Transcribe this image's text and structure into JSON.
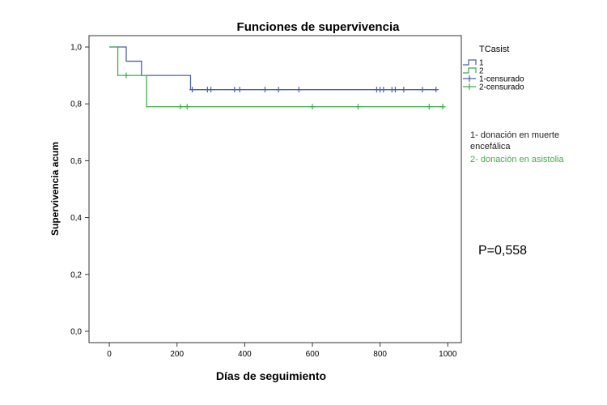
{
  "chart_data": {
    "type": "line",
    "title": "Funciones de supervivencia",
    "xlabel": "Días de seguimiento",
    "ylabel": "Supervivencia acum",
    "xlim": [
      -60,
      1040
    ],
    "ylim": [
      -0.04,
      1.04
    ],
    "x_ticks": [
      0,
      200,
      400,
      600,
      800,
      1000
    ],
    "y_ticks": [
      0.0,
      0.2,
      0.4,
      0.6,
      0.8,
      1.0
    ],
    "x_tick_labels": [
      "0",
      "200",
      "400",
      "600",
      "800",
      "1000"
    ],
    "y_tick_labels": [
      "0,0",
      "0,2",
      "0,4",
      "0,6",
      "0,8",
      "1,0"
    ],
    "legend_title": "TCasist",
    "legend_placement": "right",
    "colors": {
      "group1": "#4a5fa8",
      "group2": "#3fae4a"
    },
    "series": [
      {
        "name": "1",
        "steps": [
          [
            0,
            1.0
          ],
          [
            50,
            0.95
          ],
          [
            95,
            0.9
          ],
          [
            240,
            0.85
          ],
          [
            970,
            0.85
          ]
        ],
        "censored_name": "1-censurado",
        "censored": [
          [
            245,
            0.85
          ],
          [
            290,
            0.85
          ],
          [
            300,
            0.85
          ],
          [
            370,
            0.85
          ],
          [
            385,
            0.85
          ],
          [
            460,
            0.85
          ],
          [
            500,
            0.85
          ],
          [
            560,
            0.85
          ],
          [
            790,
            0.85
          ],
          [
            800,
            0.85
          ],
          [
            810,
            0.85
          ],
          [
            835,
            0.85
          ],
          [
            845,
            0.85
          ],
          [
            870,
            0.85
          ],
          [
            925,
            0.85
          ],
          [
            965,
            0.85
          ]
        ]
      },
      {
        "name": "2",
        "steps": [
          [
            0,
            1.0
          ],
          [
            25,
            0.9
          ],
          [
            110,
            0.79
          ],
          [
            990,
            0.79
          ]
        ],
        "censored_name": "2-censurado",
        "censored": [
          [
            50,
            0.9
          ],
          [
            210,
            0.79
          ],
          [
            230,
            0.79
          ],
          [
            600,
            0.79
          ],
          [
            735,
            0.79
          ],
          [
            945,
            0.79
          ],
          [
            985,
            0.79
          ]
        ]
      }
    ]
  },
  "annotations": {
    "group1_note": "1- donación en muerte encefálica",
    "group2_note": "2- donación en asistolia",
    "p_value": "P=0,558"
  }
}
